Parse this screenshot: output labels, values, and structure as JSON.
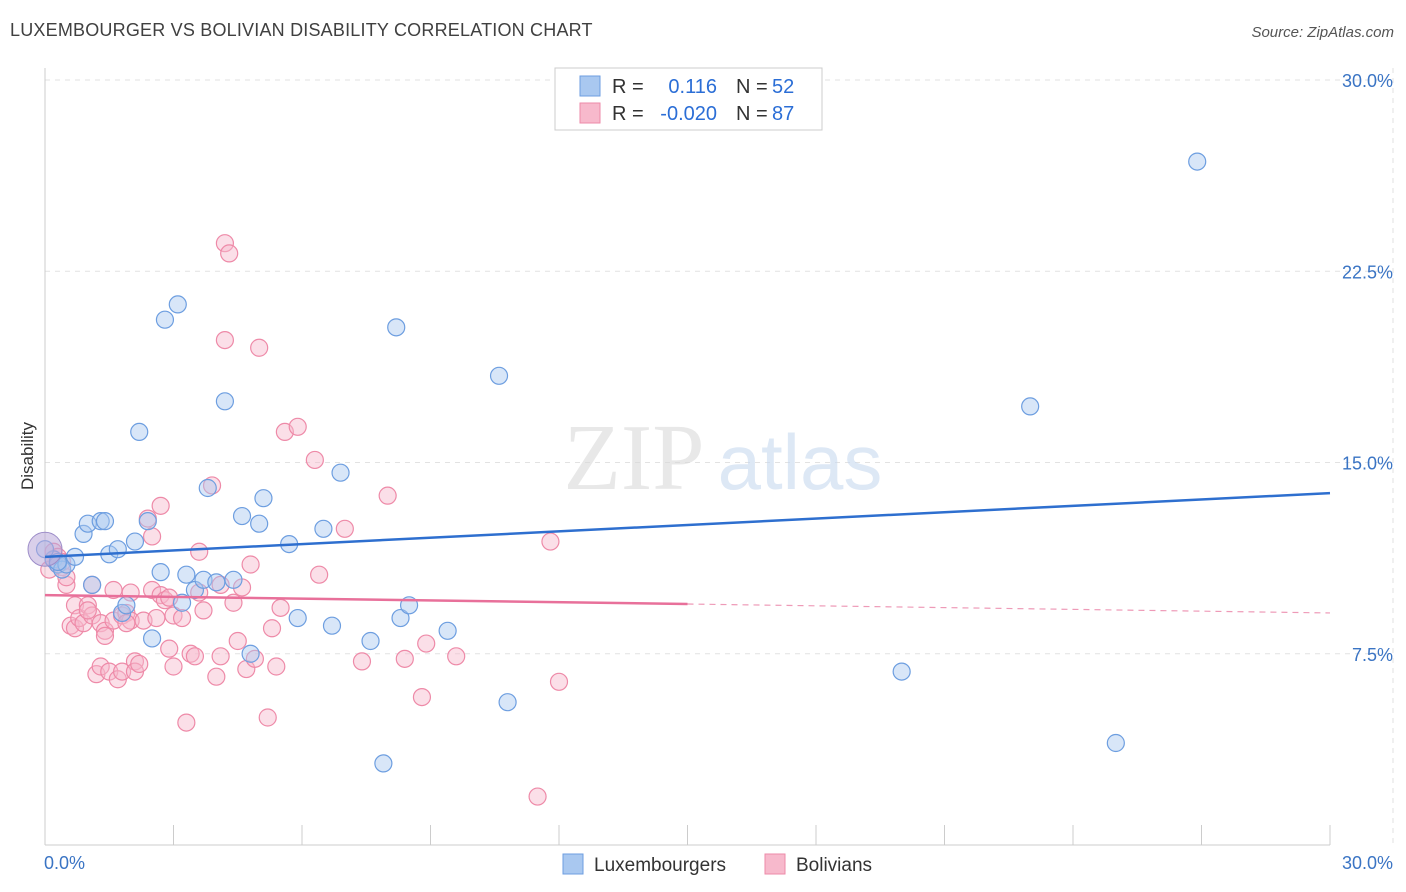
{
  "title": "LUXEMBOURGER VS BOLIVIAN DISABILITY CORRELATION CHART",
  "source": "Source: ZipAtlas.com",
  "watermark": {
    "zip": "ZIP",
    "atlas": "atlas"
  },
  "chart_data": {
    "type": "scatter",
    "ylabel": "Disability",
    "xlim": [
      0,
      30
    ],
    "ylim": [
      0,
      30
    ],
    "y_ticks": [
      {
        "value": 7.5,
        "label": "7.5%"
      },
      {
        "value": 15,
        "label": "15.0%"
      },
      {
        "value": 22.5,
        "label": "22.5%"
      },
      {
        "value": 30,
        "label": "30.0%"
      }
    ],
    "x_tick_labels": {
      "min": "0.0%",
      "max": "30.0%"
    },
    "grid": true,
    "legend": [
      {
        "name": "Luxembourgers",
        "r_label": "R =",
        "r_value": "0.116",
        "n_label": "N =",
        "n_value": "52",
        "color": "#a9c8f0",
        "stroke": "#6d9ee0",
        "line": "#2e6fcf"
      },
      {
        "name": "Bolivians",
        "r_label": "R =",
        "r_value": "-0.020",
        "n_label": "N =",
        "n_value": "87",
        "color": "#f7b9cc",
        "stroke": "#ee8aa8",
        "line": "#e8709a"
      }
    ],
    "series": [
      {
        "name": "Luxembourgers",
        "trend": {
          "x0": 0,
          "y0": 11.3,
          "x1": 30,
          "y1": 13.8
        },
        "points": [
          [
            0.2,
            11.2
          ],
          [
            0.3,
            11.0
          ],
          [
            0.4,
            10.8
          ],
          [
            0.5,
            11.0
          ],
          [
            0.7,
            11.3
          ],
          [
            0.9,
            12.2
          ],
          [
            1.0,
            12.6
          ],
          [
            1.1,
            10.2
          ],
          [
            1.3,
            12.7
          ],
          [
            1.4,
            12.7
          ],
          [
            1.5,
            11.4
          ],
          [
            1.7,
            11.6
          ],
          [
            1.8,
            9.1
          ],
          [
            1.9,
            9.4
          ],
          [
            2.1,
            11.9
          ],
          [
            2.2,
            16.2
          ],
          [
            2.4,
            12.7
          ],
          [
            2.5,
            8.1
          ],
          [
            2.7,
            10.7
          ],
          [
            2.8,
            20.6
          ],
          [
            3.1,
            21.2
          ],
          [
            3.2,
            9.5
          ],
          [
            3.3,
            10.6
          ],
          [
            3.5,
            10.0
          ],
          [
            3.7,
            10.4
          ],
          [
            3.8,
            14.0
          ],
          [
            4.0,
            10.3
          ],
          [
            4.2,
            17.4
          ],
          [
            4.4,
            10.4
          ],
          [
            4.6,
            12.9
          ],
          [
            4.8,
            7.5
          ],
          [
            5.0,
            12.6
          ],
          [
            5.1,
            13.6
          ],
          [
            5.7,
            11.8
          ],
          [
            5.9,
            8.9
          ],
          [
            6.5,
            12.4
          ],
          [
            6.7,
            8.6
          ],
          [
            6.9,
            14.6
          ],
          [
            7.6,
            8.0
          ],
          [
            7.9,
            3.2
          ],
          [
            8.2,
            20.3
          ],
          [
            8.3,
            8.9
          ],
          [
            8.5,
            9.4
          ],
          [
            9.4,
            8.4
          ],
          [
            10.6,
            18.4
          ],
          [
            10.8,
            5.6
          ],
          [
            20.0,
            6.8
          ],
          [
            23.0,
            17.2
          ],
          [
            25.0,
            4.0
          ],
          [
            26.9,
            26.8
          ],
          [
            0.0,
            11.6
          ],
          [
            0.3,
            11.1
          ]
        ]
      },
      {
        "name": "Bolivians",
        "trend": {
          "x0": 0,
          "y0": 9.8,
          "x1": 30,
          "y1": 9.1,
          "solid_until": 15
        },
        "points": [
          [
            0.1,
            10.8
          ],
          [
            0.2,
            11.5
          ],
          [
            0.3,
            11.0
          ],
          [
            0.4,
            10.9
          ],
          [
            0.5,
            10.2
          ],
          [
            0.6,
            8.6
          ],
          [
            0.7,
            8.5
          ],
          [
            0.7,
            9.4
          ],
          [
            0.8,
            8.9
          ],
          [
            0.9,
            8.7
          ],
          [
            1.0,
            9.4
          ],
          [
            1.1,
            9.0
          ],
          [
            1.1,
            10.2
          ],
          [
            1.2,
            6.7
          ],
          [
            1.3,
            7.0
          ],
          [
            1.3,
            8.7
          ],
          [
            1.4,
            8.4
          ],
          [
            1.4,
            8.2
          ],
          [
            1.5,
            6.8
          ],
          [
            1.6,
            10.0
          ],
          [
            1.6,
            8.8
          ],
          [
            1.7,
            6.5
          ],
          [
            1.8,
            9.0
          ],
          [
            1.8,
            6.8
          ],
          [
            1.9,
            9.1
          ],
          [
            2.0,
            8.8
          ],
          [
            2.0,
            9.9
          ],
          [
            2.1,
            7.2
          ],
          [
            2.1,
            6.8
          ],
          [
            2.2,
            7.1
          ],
          [
            2.3,
            8.8
          ],
          [
            2.4,
            12.8
          ],
          [
            2.5,
            12.1
          ],
          [
            2.5,
            10.0
          ],
          [
            2.6,
            8.9
          ],
          [
            2.7,
            9.8
          ],
          [
            2.7,
            13.3
          ],
          [
            2.8,
            9.6
          ],
          [
            2.9,
            7.7
          ],
          [
            3.0,
            9.0
          ],
          [
            3.0,
            7.0
          ],
          [
            3.2,
            8.9
          ],
          [
            3.3,
            4.8
          ],
          [
            3.4,
            7.5
          ],
          [
            3.5,
            7.4
          ],
          [
            3.6,
            11.5
          ],
          [
            3.7,
            9.2
          ],
          [
            3.9,
            14.1
          ],
          [
            4.0,
            6.6
          ],
          [
            4.1,
            10.2
          ],
          [
            4.1,
            7.4
          ],
          [
            4.2,
            23.6
          ],
          [
            4.3,
            23.2
          ],
          [
            4.4,
            9.5
          ],
          [
            4.5,
            8.0
          ],
          [
            4.6,
            10.1
          ],
          [
            4.7,
            6.9
          ],
          [
            4.8,
            11.0
          ],
          [
            5.0,
            19.5
          ],
          [
            5.2,
            5.0
          ],
          [
            5.3,
            8.5
          ],
          [
            5.4,
            7.0
          ],
          [
            5.5,
            9.3
          ],
          [
            5.6,
            16.2
          ],
          [
            5.9,
            16.4
          ],
          [
            6.3,
            15.1
          ],
          [
            6.4,
            10.6
          ],
          [
            7.0,
            12.4
          ],
          [
            7.4,
            7.2
          ],
          [
            8.0,
            13.7
          ],
          [
            8.4,
            7.3
          ],
          [
            8.8,
            5.8
          ],
          [
            8.9,
            7.9
          ],
          [
            9.6,
            7.4
          ],
          [
            11.8,
            11.9
          ],
          [
            12.0,
            6.4
          ],
          [
            11.5,
            1.9
          ],
          [
            0.3,
            11.3
          ],
          [
            0.5,
            10.5
          ],
          [
            1.9,
            8.7
          ],
          [
            2.9,
            9.7
          ],
          [
            3.6,
            9.9
          ],
          [
            4.2,
            19.8
          ],
          [
            4.9,
            7.3
          ],
          [
            1.0,
            9.2
          ],
          [
            0.4,
            11.1
          ],
          [
            0.2,
            11.2
          ]
        ]
      }
    ]
  }
}
